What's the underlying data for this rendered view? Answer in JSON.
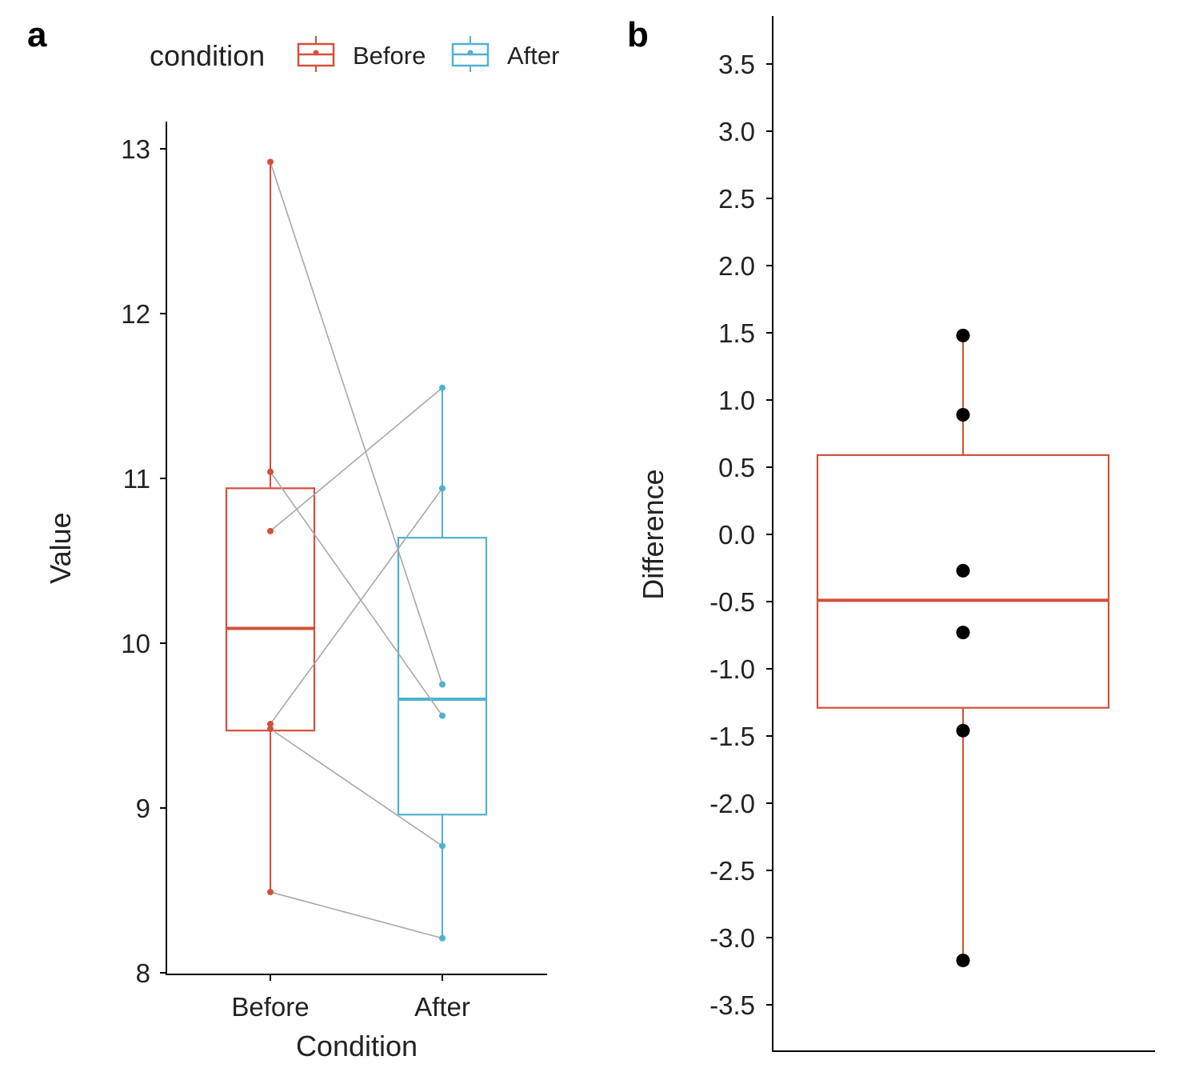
{
  "panels": {
    "a": {
      "label": "a"
    },
    "b": {
      "label": "b"
    }
  },
  "chart_data": [
    {
      "type": "boxplot",
      "panel": "a",
      "xlabel": "Condition",
      "ylabel": "Value",
      "categories": [
        "Before",
        "After"
      ],
      "ylim": [
        8,
        13
      ],
      "yticks": [
        8,
        9,
        10,
        11,
        12,
        13
      ],
      "legend": {
        "title": "condition",
        "position": "top",
        "entries": [
          {
            "label": "Before",
            "color": "#D4503A"
          },
          {
            "label": "After",
            "color": "#4FB2CF"
          }
        ]
      },
      "boxes": [
        {
          "category": "Before",
          "color": "#D4503A",
          "min": 8.49,
          "q1": 9.47,
          "median": 10.09,
          "q3": 10.94,
          "max": 12.92
        },
        {
          "category": "After",
          "color": "#4FB2CF",
          "min": 8.21,
          "q1": 8.96,
          "median": 9.66,
          "q3": 10.64,
          "max": 11.55
        }
      ],
      "pairs": [
        {
          "before": 12.92,
          "after": 9.75
        },
        {
          "before": 11.04,
          "after": 9.56
        },
        {
          "before": 10.68,
          "after": 11.55
        },
        {
          "before": 9.51,
          "after": 10.94
        },
        {
          "before": 9.48,
          "after": 8.77
        },
        {
          "before": 8.49,
          "after": 8.21
        }
      ],
      "pair_line_color": "#A8A8A8"
    },
    {
      "type": "boxplot",
      "panel": "b",
      "xlabel": "",
      "ylabel": "Difference",
      "ylim": [
        -3.7,
        3.85
      ],
      "yticks": [
        3.5,
        3.0,
        2.5,
        2.0,
        1.5,
        1.0,
        0.5,
        0.0,
        -0.5,
        -1.0,
        -1.5,
        -2.0,
        -2.5,
        -3.0,
        -3.5
      ],
      "ytick_labels": [
        "3.5",
        "3.0",
        "2.5",
        "2.0",
        "1.5",
        "1.0",
        "0.5",
        "0.0",
        "-0.5",
        "-1.0",
        "-1.5",
        "-2.0",
        "-2.5",
        "-3.0",
        "-3.5"
      ],
      "box": {
        "color": "#D4503A",
        "min": -3.17,
        "q1": -1.29,
        "median": -0.49,
        "q3": 0.59,
        "max": 1.48
      },
      "points": [
        1.48,
        0.89,
        -0.27,
        -0.73,
        -1.46,
        -3.17
      ],
      "point_color": "#000000"
    }
  ]
}
